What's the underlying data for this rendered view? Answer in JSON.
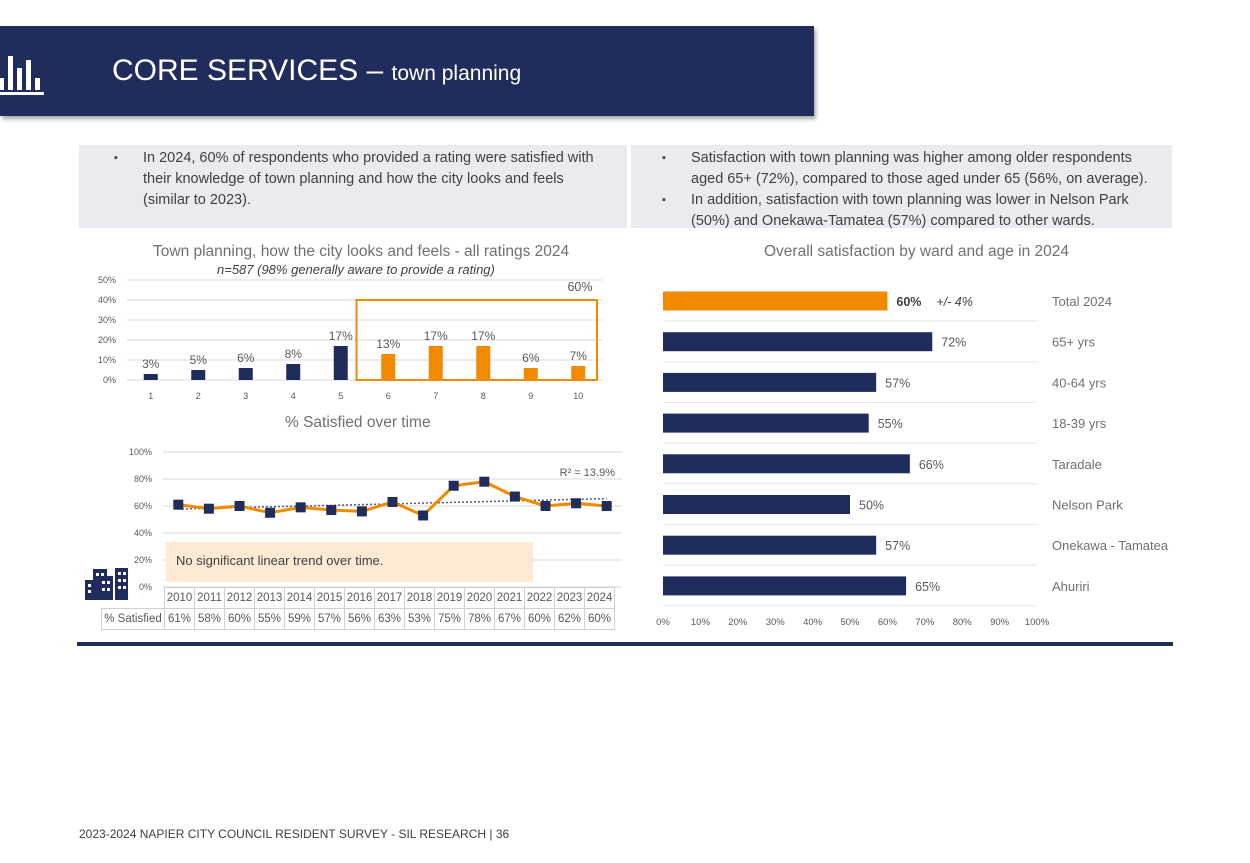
{
  "header": {
    "title": "CORE SERVICES –",
    "subtitle": "town planning"
  },
  "bullets_left": [
    "In 2024, 60% of respondents who provided a rating were satisfied with their knowledge of town planning and how the city looks and feels (similar to 2023)."
  ],
  "bullets_right": [
    "Satisfaction with town planning was higher among older respondents aged 65+ (72%), compared to those aged under 65 (56%, on average).",
    "In addition, satisfaction with town planning was lower in Nelson Park (50%) and Onekawa-Tamatea (57%) compared to other wards."
  ],
  "note": "No significant linear trend over time.",
  "footer": "2023-2024 NAPIER CITY COUNCIL RESIDENT SURVEY - SIL RESEARCH | 36",
  "colors": {
    "navy": "#202c5c",
    "orange": "#f28a00",
    "note_bg": "#fde9d4"
  },
  "chart_data": [
    {
      "type": "bar",
      "title": "Town planning, how the city looks and feels - all ratings 2024",
      "subtitle": "n=587 (98% generally aware to provide a rating)",
      "categories": [
        "1",
        "2",
        "3",
        "4",
        "5",
        "6",
        "7",
        "8",
        "9",
        "10"
      ],
      "values": [
        3,
        5,
        6,
        8,
        17,
        13,
        17,
        17,
        6,
        7
      ],
      "labels": [
        "3%",
        "5%",
        "6%",
        "8%",
        "17%",
        "13%",
        "17%",
        "17%",
        "6%",
        "7%"
      ],
      "highlight_from": "6",
      "highlight_label": "60%",
      "ylim": [
        0,
        50
      ],
      "yticks": [
        "0%",
        "10%",
        "20%",
        "30%",
        "40%",
        "50%"
      ],
      "grid": true
    },
    {
      "type": "line",
      "title": "% Satisfied over time",
      "x": [
        "2010",
        "2011",
        "2012",
        "2013",
        "2014",
        "2015",
        "2016",
        "2017",
        "2018",
        "2019",
        "2020",
        "2021",
        "2022",
        "2023",
        "2024"
      ],
      "values": [
        61,
        58,
        60,
        55,
        59,
        57,
        56,
        63,
        53,
        75,
        78,
        67,
        60,
        62,
        60
      ],
      "table_label": "% Satisfied",
      "table_values": [
        "61%",
        "58%",
        "60%",
        "55%",
        "59%",
        "57%",
        "56%",
        "63%",
        "53%",
        "75%",
        "78%",
        "67%",
        "60%",
        "62%",
        "60%"
      ],
      "trendline": "dotted linear",
      "r2_label": "R² = 13.9%",
      "ylim": [
        0,
        100
      ],
      "yticks": [
        "0%",
        "20%",
        "40%",
        "60%",
        "80%",
        "100%"
      ],
      "grid": true
    },
    {
      "type": "bar",
      "orientation": "horizontal",
      "title": "Overall satisfaction by ward and age in 2024",
      "categories": [
        "Total 2024",
        "65+ yrs",
        "40-64 yrs",
        "18-39 yrs",
        "Taradale",
        "Nelson Park",
        "Onekawa - Tamatea",
        "Ahuriri"
      ],
      "values": [
        60,
        72,
        57,
        55,
        66,
        50,
        57,
        65
      ],
      "labels": [
        "60%",
        "72%",
        "57%",
        "55%",
        "66%",
        "50%",
        "57%",
        "65%"
      ],
      "total_margin": "+/- 4%",
      "xlim": [
        0,
        100
      ],
      "xticks": [
        "0%",
        "10%",
        "20%",
        "30%",
        "40%",
        "50%",
        "60%",
        "70%",
        "80%",
        "90%",
        "100%"
      ],
      "grid": false
    }
  ]
}
